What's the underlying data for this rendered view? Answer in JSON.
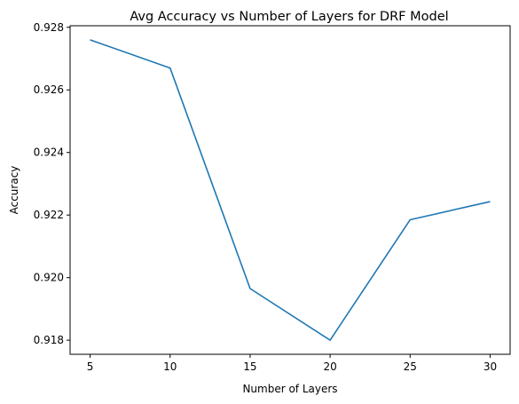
{
  "chart_data": {
    "type": "line",
    "title": "Avg Accuracy vs Number of Layers for DRF Model",
    "xlabel": "Number of Layers",
    "ylabel": "Accuracy",
    "x": [
      5,
      10,
      15,
      20,
      25,
      30
    ],
    "series": [
      {
        "values": [
          0.9276,
          0.9267,
          0.91965,
          0.918,
          0.92185,
          0.92243
        ]
      }
    ],
    "xlim": [
      3.75,
      31.25
    ],
    "ylim": [
      0.91755,
      0.92805
    ],
    "xticks": [
      5,
      10,
      15,
      20,
      25,
      30
    ],
    "xtick_labels": [
      "5",
      "10",
      "15",
      "20",
      "25",
      "30"
    ],
    "yticks": [
      0.918,
      0.92,
      0.922,
      0.924,
      0.926,
      0.928
    ],
    "ytick_labels": [
      "0.918",
      "0.920",
      "0.922",
      "0.924",
      "0.926",
      "0.928"
    ],
    "grid": false,
    "line_color": "#1f77b4"
  }
}
